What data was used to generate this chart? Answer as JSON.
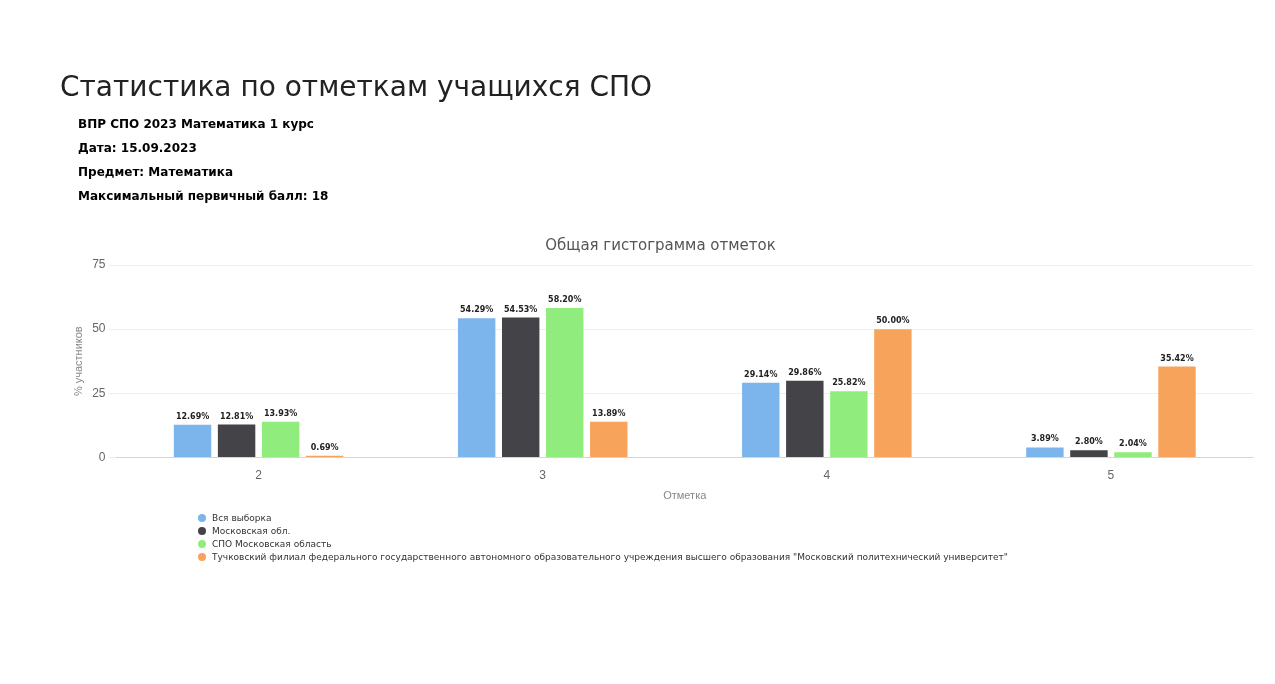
{
  "chart_data": {
    "type": "bar",
    "title": "Общая гистограмма отметок",
    "annotations": [
      "Статистика по отметкам учащихся СПО",
      "ВПР СПО 2023 Математика 1 курс",
      "Дата: 15.09.2023",
      "Предмет: Математика",
      "Максимальный первичный балл: 18"
    ],
    "xlabel": "Отметка",
    "ylabel": "% участников",
    "categories": [
      "2",
      "3",
      "4",
      "5"
    ],
    "series": [
      {
        "name": "Вся выборка",
        "color": "#7cb5ec",
        "values": [
          12.69,
          54.29,
          29.14,
          3.89
        ],
        "value_labels": [
          "12.69%",
          "54.29%",
          "29.14%",
          "3.89%"
        ]
      },
      {
        "name": "Московская обл.",
        "color": "#434348",
        "values": [
          12.81,
          54.53,
          29.86,
          2.8
        ],
        "value_labels": [
          "12.81%",
          "54.53%",
          "29.86%",
          "2.80%"
        ]
      },
      {
        "name": "СПО Московская область",
        "color": "#90ed7d",
        "values": [
          13.93,
          58.2,
          25.82,
          2.04
        ],
        "value_labels": [
          "13.93%",
          "58.20%",
          "25.82%",
          "2.04%"
        ]
      },
      {
        "name": "Тучковский филиал федерального государственного автономного образовательного учреждения высшего образования \"Московский политехнический университет\"",
        "color": "#f7a35c",
        "values": [
          0.69,
          13.89,
          50.0,
          35.42
        ],
        "value_labels": [
          "0.69%",
          "13.89%",
          "50.00%",
          "35.42%"
        ]
      }
    ],
    "ylim": [
      0,
      75
    ],
    "yticks": [
      0,
      25,
      50,
      75
    ],
    "grid": "y",
    "legend": "bottom left"
  }
}
